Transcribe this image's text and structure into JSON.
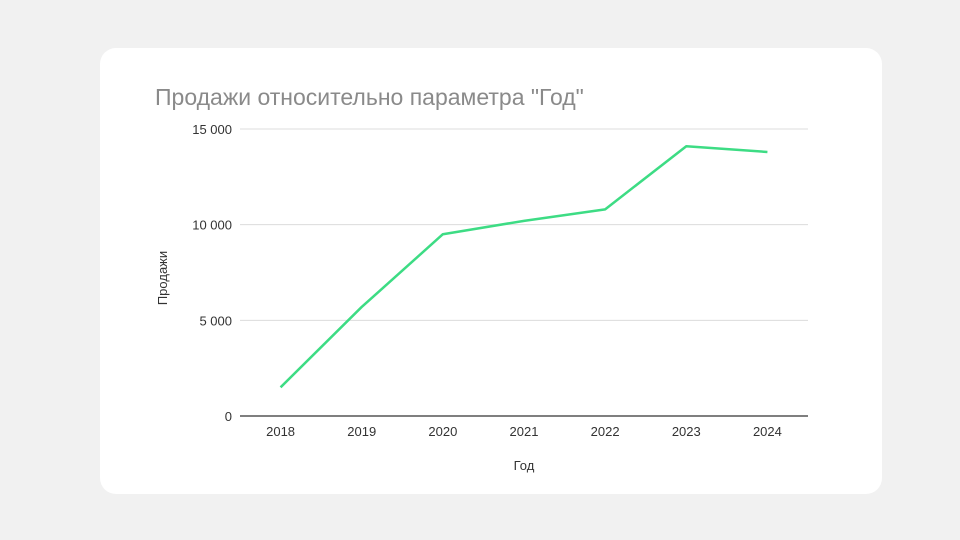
{
  "chart_data": {
    "type": "line",
    "title": "Продажи относительно параметра \"Год\"",
    "xlabel": "Год",
    "ylabel": "Продажи",
    "categories": [
      "2018",
      "2019",
      "2020",
      "2021",
      "2022",
      "2023",
      "2024"
    ],
    "series": [
      {
        "values": [
          1500,
          5700,
          9500,
          10200,
          10800,
          14100,
          13800
        ],
        "color": "#3ddc84"
      }
    ],
    "ylim": [
      0,
      15000
    ],
    "yticks": [
      0,
      5000,
      10000,
      15000
    ],
    "ytick_labels": [
      "0",
      "5 000",
      "10 000",
      "15 000"
    ],
    "grid": true,
    "legend": "none"
  }
}
